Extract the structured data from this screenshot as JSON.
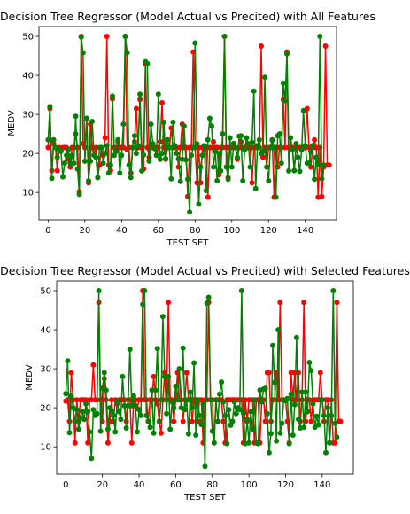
{
  "chart_data": [
    {
      "type": "line",
      "title": "Decision Tree Regressor (Model Actual vs Precited) with All Features",
      "xlabel": "TEST SET",
      "ylabel": "MEDV",
      "xlim": [
        -5,
        157
      ],
      "ylim": [
        3,
        52.5
      ],
      "xticks": [
        0,
        20,
        40,
        60,
        80,
        100,
        120,
        140
      ],
      "yticks": [
        10,
        20,
        30,
        40,
        50
      ],
      "grid": false,
      "legend": "none",
      "series": [
        {
          "color": "#ff0000",
          "values": [
            21.5,
            31.5,
            15.6,
            22.5,
            21.5,
            15.6,
            21.5,
            21.0,
            21.5,
            21.5,
            21.5,
            18.5,
            16.5,
            21.5,
            21.5,
            25.0,
            21.5,
            10.2,
            50.0,
            22.5,
            21.5,
            29.0,
            12.5,
            27.5,
            21.5,
            19.5,
            21.5,
            13.8,
            17.0,
            21.5,
            19.5,
            24.0,
            50.0,
            17.0,
            15.6,
            34.0,
            21.5,
            21.5,
            23.0,
            21.5,
            21.5,
            21.5,
            50.0,
            21.0,
            21.5,
            15.0,
            21.5,
            23.0,
            31.5,
            21.5,
            33.8,
            21.5,
            16.0,
            43.0,
            21.5,
            19.0,
            21.5,
            21.5,
            21.5,
            19.5,
            21.5,
            23.0,
            33.0,
            21.5,
            18.5,
            21.5,
            21.5,
            26.5,
            21.5,
            21.5,
            21.5,
            16.5,
            21.5,
            27.5,
            21.5,
            21.5,
            9.0,
            21.5,
            21.5,
            46.0,
            21.5,
            12.5,
            21.5,
            12.5,
            21.5,
            21.5,
            21.5,
            8.8,
            21.5,
            21.5,
            23.0,
            21.5,
            21.5,
            14.5,
            21.5,
            21.5,
            50.0,
            21.5,
            13.8,
            21.5,
            21.5,
            21.5,
            21.5,
            18.5,
            21.5,
            23.0,
            21.5,
            21.5,
            21.5,
            21.5,
            21.5,
            12.5,
            21.5,
            21.5,
            21.5,
            21.5,
            47.5,
            19.0,
            21.5,
            16.5,
            21.5,
            21.5,
            23.5,
            8.8,
            21.5,
            16.5,
            21.5,
            21.5,
            33.8,
            21.5,
            46.0,
            21.5,
            21.5,
            21.5,
            15.6,
            21.5,
            21.5,
            21.5,
            21.5,
            21.5,
            21.5,
            31.5,
            21.5,
            16.5,
            21.5,
            23.5,
            21.5,
            8.8,
            21.5,
            9.0,
            16.5,
            47.5,
            17.0,
            17.0
          ]
        },
        {
          "color": "#008000",
          "values": [
            23.5,
            32.0,
            13.6,
            23.5,
            21.5,
            19.0,
            21.0,
            20.5,
            14.0,
            17.5,
            19.5,
            21.0,
            17.5,
            19.5,
            17.5,
            29.5,
            16.0,
            9.5,
            49.8,
            45.8,
            18.0,
            29.0,
            13.0,
            18.0,
            28.2,
            19.5,
            19.0,
            13.8,
            21.5,
            21.5,
            17.5,
            20.0,
            22.0,
            15.0,
            17.0,
            34.7,
            19.5,
            20.5,
            23.5,
            15.0,
            19.5,
            27.5,
            50.0,
            45.8,
            17.0,
            13.8,
            21.5,
            24.5,
            20.0,
            22.0,
            35.2,
            15.5,
            19.6,
            43.5,
            43.0,
            18.0,
            27.5,
            22.5,
            21.2,
            19.5,
            35.2,
            18.5,
            20.0,
            28.0,
            18.7,
            23.5,
            21.5,
            13.5,
            28.0,
            22.0,
            20.0,
            18.6,
            12.8,
            18.5,
            27.0,
            18.4,
            13.4,
            5.0,
            19.5,
            21.5,
            48.3,
            22.5,
            7.0,
            16.5,
            19.5,
            22.0,
            10.5,
            23.5,
            29.0,
            27.0,
            16.5,
            20.5,
            13.0,
            20.0,
            15.5,
            25.0,
            50.0,
            16.5,
            13.4,
            24.0,
            16.5,
            22.6,
            21.5,
            19.0,
            24.4,
            24.5,
            13.0,
            21.0,
            24.0,
            22.5,
            16.5,
            22.8,
            36.0,
            11.0,
            22.0,
            23.5,
            20.0,
            20.5,
            39.5,
            16.5,
            13.0,
            21.5,
            23.4,
            21.5,
            8.8,
            24.5,
            25.0,
            17.5,
            38.0,
            33.5,
            45.5,
            15.5,
            24.0,
            21.0,
            15.6,
            22.5,
            19.0,
            15.4,
            21.0,
            31.0,
            22.0,
            17.5,
            17.5,
            20.5,
            22.0,
            13.4,
            19.0,
            17.1,
            50.0,
            13.5,
            17.0
          ]
        }
      ]
    },
    {
      "type": "line",
      "title": "Decision Tree Regressor (Model Actual vs Precited) with Selected Features",
      "xlabel": "TEST SET",
      "ylabel": "MEDV",
      "xlim": [
        -5,
        157
      ],
      "ylim": [
        3,
        52.5
      ],
      "xticks": [
        0,
        20,
        40,
        60,
        80,
        100,
        120,
        140
      ],
      "yticks": [
        10,
        20,
        30,
        40,
        50
      ],
      "grid": false,
      "legend": "none",
      "series": [
        {
          "color": "#ff0000",
          "values": [
            21.7,
            22.0,
            16.5,
            29.0,
            22.0,
            11.0,
            22.0,
            16.5,
            22.0,
            22.0,
            22.0,
            22.0,
            11.0,
            22.0,
            22.0,
            31.0,
            22.0,
            22.0,
            47.0,
            22.0,
            16.5,
            27.5,
            22.0,
            11.0,
            16.5,
            22.0,
            16.5,
            22.0,
            21.0,
            22.0,
            22.0,
            22.0,
            22.0,
            16.5,
            22.0,
            22.0,
            11.0,
            22.0,
            22.0,
            19.8,
            22.0,
            22.0,
            50.0,
            22.0,
            22.0,
            16.5,
            22.0,
            22.0,
            28.0,
            22.0,
            21.0,
            16.5,
            13.5,
            22.0,
            29.0,
            22.0,
            47.0,
            22.0,
            22.0,
            16.5,
            22.0,
            29.0,
            22.0,
            22.0,
            16.5,
            22.0,
            29.0,
            22.0,
            22.0,
            16.5,
            22.0,
            22.0,
            16.5,
            22.0,
            22.0,
            11.0,
            22.0,
            22.0,
            47.0,
            22.0,
            22.0,
            11.0,
            22.0,
            22.0,
            22.0,
            22.0,
            16.5,
            11.0,
            22.0,
            22.0,
            22.0,
            22.0,
            22.0,
            22.0,
            22.0,
            22.0,
            22.0,
            11.0,
            22.0,
            16.5,
            22.0,
            22.0,
            22.0,
            11.0,
            22.0,
            22.0,
            11.0,
            22.0,
            22.0,
            16.5,
            29.0,
            29.0,
            16.5,
            22.0,
            22.0,
            29.0,
            22.0,
            47.0,
            22.0,
            22.0,
            22.0,
            16.5,
            11.0,
            29.0,
            22.0,
            29.0,
            22.0,
            29.0,
            16.5,
            22.0,
            47.0,
            16.5,
            22.0,
            22.0,
            16.5,
            22.0,
            22.0,
            22.0,
            22.0,
            29.0,
            22.0,
            16.5,
            22.0,
            22.0,
            11.0,
            22.0,
            11.0,
            11.0,
            47.0,
            16.5,
            16.5
          ]
        },
        {
          "color": "#008000",
          "values": [
            23.6,
            32.0,
            13.6,
            23.0,
            20.0,
            16.5,
            19.5,
            14.5,
            17.5,
            19.0,
            17.0,
            21.0,
            19.0,
            13.8,
            7.0,
            19.5,
            18.0,
            18.5,
            50.0,
            14.0,
            25.0,
            29.0,
            24.5,
            14.5,
            20.0,
            19.2,
            18.0,
            13.8,
            21.6,
            19.0,
            17.0,
            28.0,
            20.5,
            14.8,
            20.5,
            35.0,
            20.5,
            23.0,
            20.5,
            13.8,
            19.5,
            18.0,
            46.5,
            50.0,
            18.0,
            16.5,
            15.0,
            24.5,
            13.5,
            24.5,
            35.2,
            16.5,
            22.0,
            43.4,
            28.0,
            18.5,
            28.0,
            14.5,
            21.5,
            20.0,
            25.5,
            22.0,
            30.0,
            20.0,
            35.3,
            19.5,
            22.0,
            13.3,
            24.0,
            20.0,
            31.5,
            13.0,
            22.0,
            18.0,
            15.7,
            21.0,
            5.0,
            46.8,
            48.3,
            22.0,
            14.0,
            11.0,
            22.0,
            16.5,
            23.5,
            26.6,
            21.5,
            18.0,
            10.8,
            19.5,
            15.5,
            16.5,
            21.5,
            18.5,
            20.0,
            19.5,
            50.0,
            18.6,
            10.8,
            17.0,
            11.0,
            19.0,
            14.5,
            22.0,
            11.0,
            10.8,
            24.5,
            21.5,
            24.8,
            25.0,
            18.5,
            8.5,
            13.4,
            36.0,
            26.5,
            11.5,
            40.0,
            13.5,
            16.0,
            22.0,
            21.8,
            22.4,
            10.8,
            23.5,
            13.0,
            20.8,
            38.0,
            17.0,
            14.8,
            24.0,
            15.0,
            24.0,
            19.0,
            31.6,
            29.5,
            21.0,
            15.0,
            17.8,
            15.6,
            22.0,
            22.0,
            18.0,
            8.5,
            20.0,
            11.0,
            18.0,
            50.0,
            16.0,
            12.5
          ]
        }
      ]
    }
  ]
}
